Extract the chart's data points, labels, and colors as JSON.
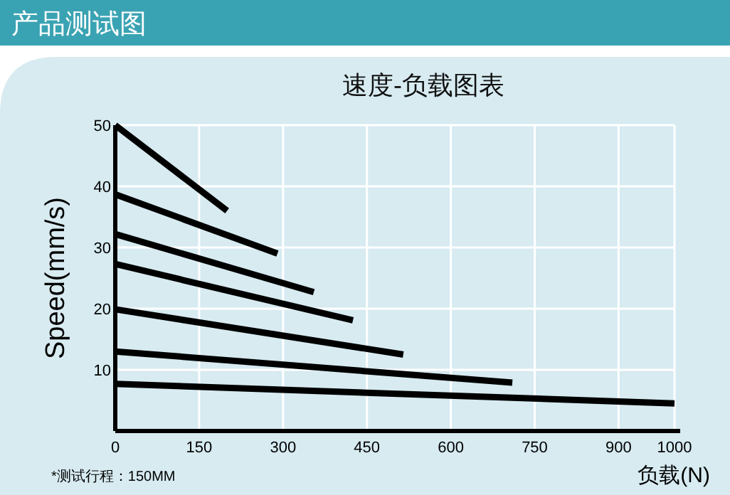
{
  "chart_data": {
    "type": "line",
    "title": "速度-负载图表",
    "subtitle": "产品测试图",
    "xlabel": "负载(N)",
    "ylabel": "Speed(mm/s)",
    "annotations": [
      "*测试行程：150MM"
    ],
    "xlim": [
      0,
      1000
    ],
    "xticks": [
      0,
      150,
      300,
      450,
      600,
      750,
      900,
      1000
    ],
    "ylim": [
      0,
      50
    ],
    "yticks": [
      10,
      20,
      30,
      40,
      50
    ],
    "grid": true,
    "marker": "none",
    "line_style": "solid",
    "series": [
      {
        "color": "#000000",
        "x": [
          0,
          200
        ],
        "values": [
          50,
          36
        ]
      },
      {
        "color": "#000000",
        "x": [
          0,
          290
        ],
        "values": [
          38.7,
          29
        ]
      },
      {
        "color": "#000000",
        "x": [
          0,
          355
        ],
        "values": [
          32.2,
          22.7
        ]
      },
      {
        "color": "#000000",
        "x": [
          0,
          425
        ],
        "values": [
          27.3,
          18.1
        ]
      },
      {
        "color": "#000000",
        "x": [
          0,
          515
        ],
        "values": [
          19.9,
          12.5
        ]
      },
      {
        "color": "#000000",
        "x": [
          0,
          710
        ],
        "values": [
          13,
          7.9
        ]
      },
      {
        "color": "#000000",
        "x": [
          0,
          1000
        ],
        "values": [
          7.7,
          4.5
        ]
      }
    ]
  }
}
